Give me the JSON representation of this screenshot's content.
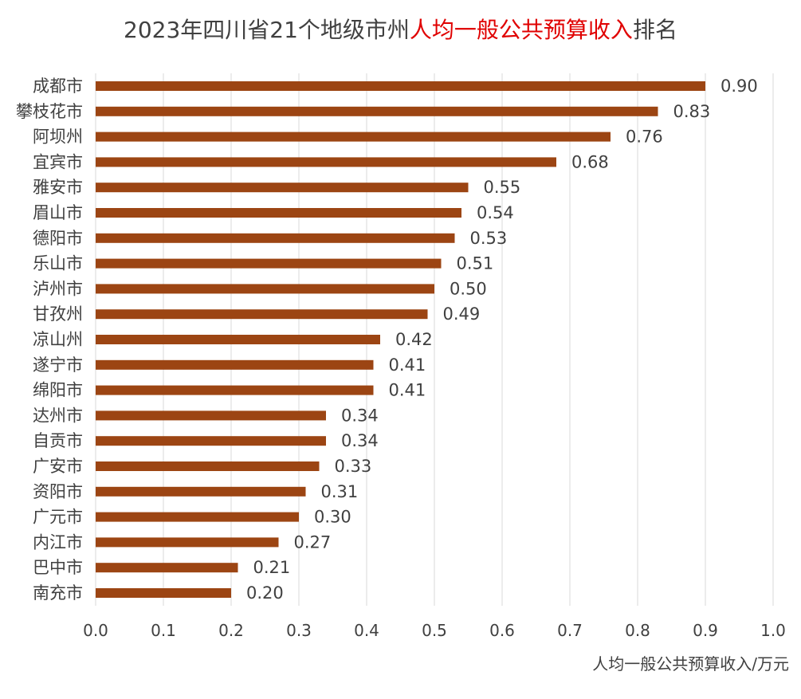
{
  "chart_data": {
    "type": "bar",
    "orientation": "horizontal",
    "title_parts": {
      "prefix": "2023年四川省21个地级市州",
      "highlight": "人均一般公共预算收入",
      "suffix": "排名"
    },
    "xlabel": "人均一般公共预算收入/万元",
    "ylabel": "",
    "xlim": [
      0,
      1.0
    ],
    "xticks": [
      "0.0",
      "0.1",
      "0.2",
      "0.3",
      "0.4",
      "0.5",
      "0.6",
      "0.7",
      "0.8",
      "0.9",
      "1.0"
    ],
    "grid": true,
    "categories": [
      "成都市",
      "攀枝花市",
      "阿坝州",
      "宜宾市",
      "雅安市",
      "眉山市",
      "德阳市",
      "乐山市",
      "泸州市",
      "甘孜州",
      "凉山州",
      "遂宁市",
      "绵阳市",
      "达州市",
      "自贡市",
      "广安市",
      "资阳市",
      "广元市",
      "内江市",
      "巴中市",
      "南充市"
    ],
    "values": [
      0.9,
      0.83,
      0.76,
      0.68,
      0.55,
      0.54,
      0.53,
      0.51,
      0.5,
      0.49,
      0.42,
      0.41,
      0.41,
      0.34,
      0.34,
      0.33,
      0.31,
      0.3,
      0.27,
      0.21,
      0.2
    ],
    "value_labels": [
      "0.90",
      "0.83",
      "0.76",
      "0.68",
      "0.55",
      "0.54",
      "0.53",
      "0.51",
      "0.50",
      "0.49",
      "0.42",
      "0.41",
      "0.41",
      "0.34",
      "0.34",
      "0.33",
      "0.31",
      "0.30",
      "0.27",
      "0.21",
      "0.20"
    ],
    "colors": {
      "bar": "#9c4513",
      "grid": "#d9d9d9",
      "highlight": "#e00000",
      "text": "#404040"
    }
  }
}
